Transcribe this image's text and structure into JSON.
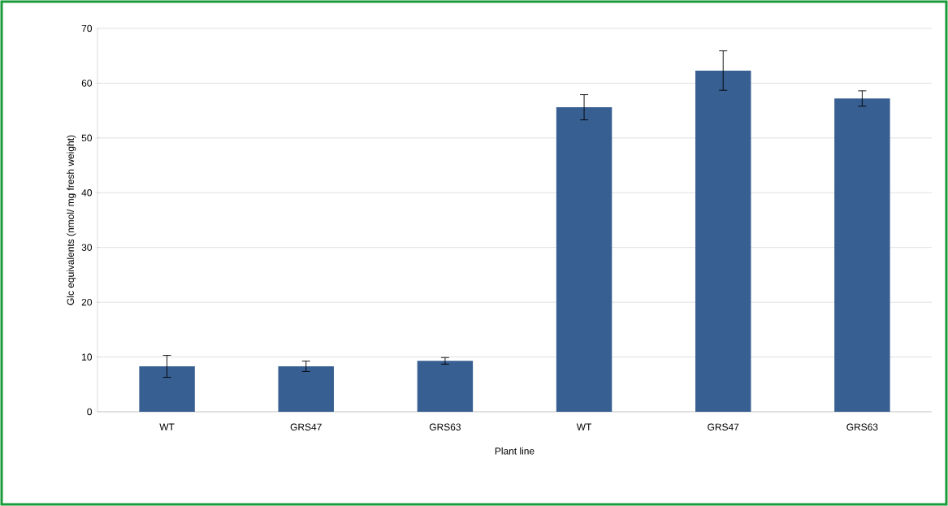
{
  "chart_data": {
    "type": "bar",
    "xlabel": "Plant line",
    "ylabel": "Glc equivalents (nmol/ mg fresh weight)",
    "categories": [
      "WT",
      "GRS47",
      "GRS63",
      "WT",
      "GRS47",
      "GRS63"
    ],
    "values": [
      8.3,
      8.3,
      9.3,
      55.6,
      62.3,
      57.2
    ],
    "errors": [
      2.0,
      0.95,
      0.6,
      2.3,
      3.6,
      1.4
    ],
    "color": "#385f92",
    "ylim": [
      0,
      70
    ],
    "yticks": [
      0,
      10,
      20,
      30,
      40,
      50,
      60,
      70
    ],
    "grid": "y"
  }
}
